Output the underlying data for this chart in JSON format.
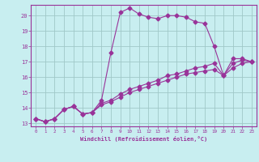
{
  "xlabel": "Windchill (Refroidissement éolien,°C)",
  "ylabel": "",
  "xlim": [
    -0.5,
    23.5
  ],
  "ylim": [
    12.8,
    20.7
  ],
  "yticks": [
    13,
    14,
    15,
    16,
    17,
    18,
    19,
    20
  ],
  "xticks": [
    0,
    1,
    2,
    3,
    4,
    5,
    6,
    7,
    8,
    9,
    10,
    11,
    12,
    13,
    14,
    15,
    16,
    17,
    18,
    19,
    20,
    21,
    22,
    23
  ],
  "bg_color": "#c8eef0",
  "grid_color": "#a0c8c8",
  "line_color": "#993399",
  "spine_color": "#993399",
  "series1_x": [
    0,
    1,
    2,
    3,
    4,
    5,
    6,
    7,
    8,
    9,
    10,
    11,
    12,
    13,
    14,
    15,
    16,
    17,
    18,
    19,
    20,
    21,
    22,
    23
  ],
  "series1_y": [
    13.3,
    13.1,
    13.3,
    13.9,
    14.1,
    13.6,
    13.7,
    14.5,
    17.6,
    20.2,
    20.5,
    20.1,
    19.9,
    19.8,
    20.0,
    20.0,
    19.9,
    19.6,
    19.5,
    18.0,
    16.1,
    17.2,
    17.2,
    17.0
  ],
  "series2_x": [
    0,
    1,
    2,
    3,
    4,
    5,
    6,
    7,
    8,
    9,
    10,
    11,
    12,
    13,
    14,
    15,
    16,
    17,
    18,
    19,
    20,
    21,
    22,
    23
  ],
  "series2_y": [
    13.3,
    13.1,
    13.3,
    13.9,
    14.1,
    13.6,
    13.7,
    14.2,
    14.4,
    14.7,
    15.0,
    15.2,
    15.4,
    15.6,
    15.8,
    16.0,
    16.2,
    16.3,
    16.4,
    16.5,
    16.1,
    16.6,
    16.9,
    17.0
  ],
  "series3_x": [
    0,
    1,
    2,
    3,
    4,
    5,
    6,
    7,
    8,
    9,
    10,
    11,
    12,
    13,
    14,
    15,
    16,
    17,
    18,
    19,
    20,
    21,
    22,
    23
  ],
  "series3_y": [
    13.3,
    13.1,
    13.3,
    13.9,
    14.1,
    13.6,
    13.7,
    14.3,
    14.5,
    14.9,
    15.2,
    15.4,
    15.6,
    15.8,
    16.1,
    16.2,
    16.4,
    16.6,
    16.7,
    16.9,
    16.1,
    16.9,
    17.1,
    17.0
  ]
}
